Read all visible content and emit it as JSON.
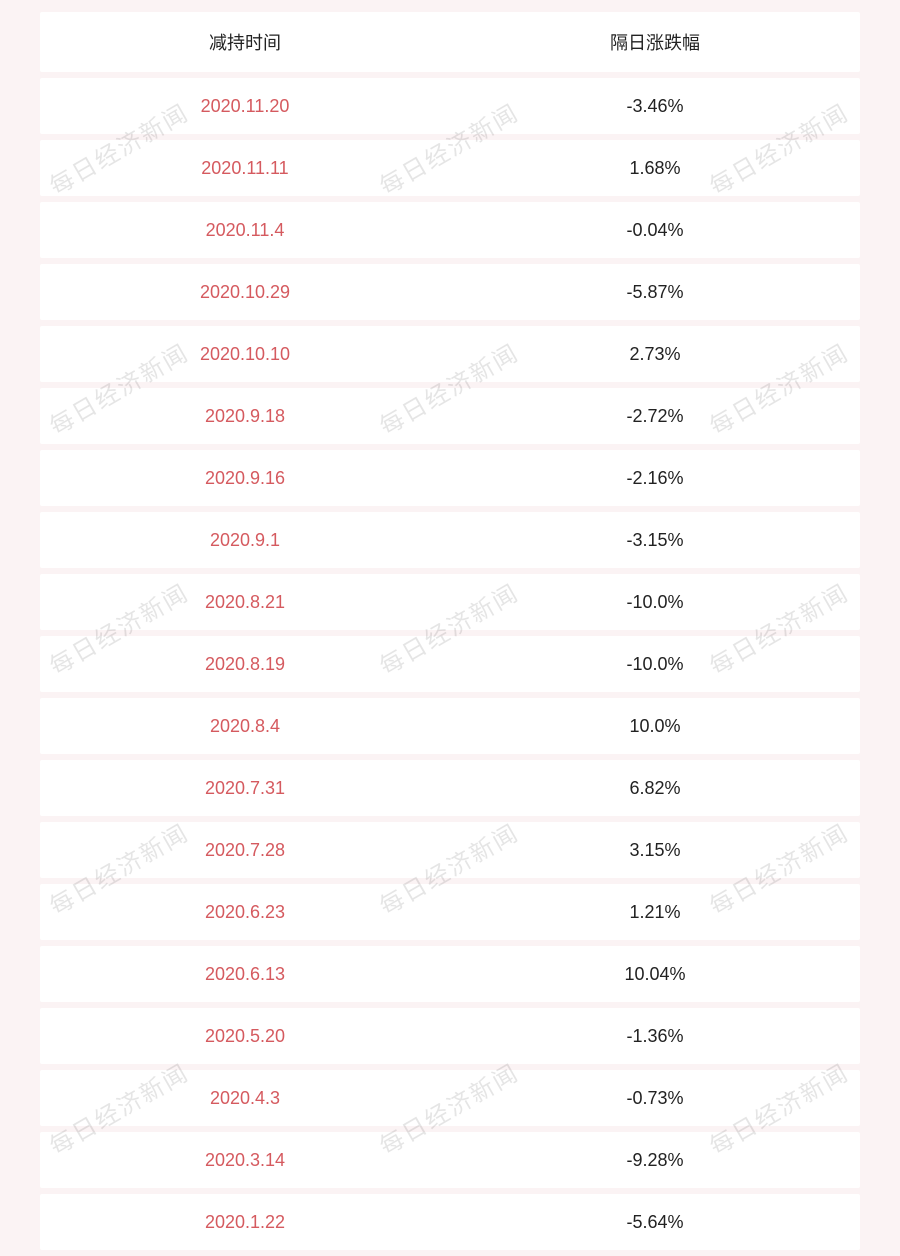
{
  "watermark": {
    "text": "每日经济新闻",
    "color": "rgba(0,0,0,0.10)",
    "fontsize": 24,
    "rotation_deg": -30
  },
  "table": {
    "background_color": "#fbf3f4",
    "row_color": "#ffffff",
    "date_color": "#d55a5f",
    "value_color": "#222222",
    "header_color": "#222222",
    "fontsize": 18,
    "columns": [
      "减持时间",
      "隔日涨跌幅"
    ],
    "rows": [
      {
        "date": "2020.11.20",
        "value": "-3.46%"
      },
      {
        "date": "2020.11.11",
        "value": "1.68%"
      },
      {
        "date": "2020.11.4",
        "value": "-0.04%"
      },
      {
        "date": "2020.10.29",
        "value": "-5.87%"
      },
      {
        "date": "2020.10.10",
        "value": "2.73%"
      },
      {
        "date": "2020.9.18",
        "value": "-2.72%"
      },
      {
        "date": "2020.9.16",
        "value": "-2.16%"
      },
      {
        "date": "2020.9.1",
        "value": "-3.15%"
      },
      {
        "date": "2020.8.21",
        "value": "-10.0%"
      },
      {
        "date": "2020.8.19",
        "value": "-10.0%"
      },
      {
        "date": "2020.8.4",
        "value": "10.0%"
      },
      {
        "date": "2020.7.31",
        "value": "6.82%"
      },
      {
        "date": "2020.7.28",
        "value": "3.15%"
      },
      {
        "date": "2020.6.23",
        "value": "1.21%"
      },
      {
        "date": "2020.6.13",
        "value": "10.04%"
      },
      {
        "date": "2020.5.20",
        "value": "-1.36%"
      },
      {
        "date": "2020.4.3",
        "value": "-0.73%"
      },
      {
        "date": "2020.3.14",
        "value": "-9.28%"
      },
      {
        "date": "2020.1.22",
        "value": "-5.64%"
      }
    ]
  }
}
